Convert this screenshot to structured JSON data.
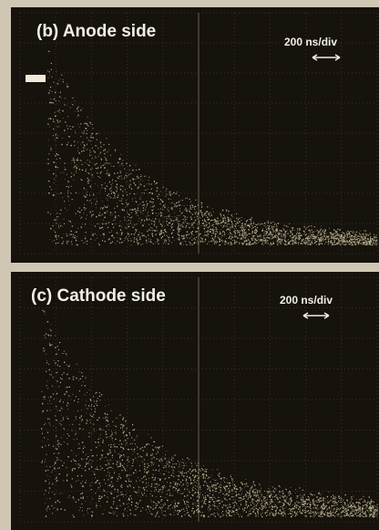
{
  "panels": [
    {
      "label": "(b) Anode side",
      "scale": "200 ns/div"
    },
    {
      "label": "(c) Cathode side",
      "scale": "200 ns/div"
    }
  ]
}
